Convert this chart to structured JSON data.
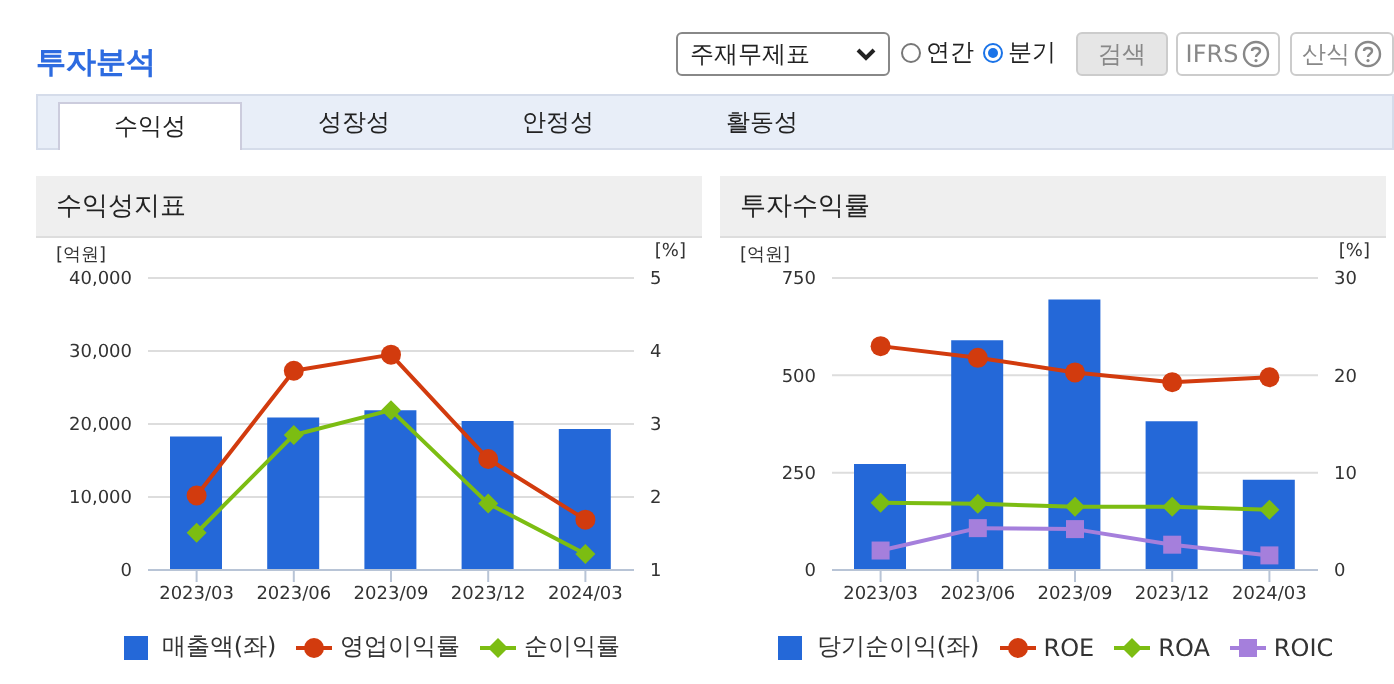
{
  "chart_data": [
    {
      "type": "other",
      "title": "투자분석",
      "annotations": [
        "주재무제표",
        "연간",
        "분기",
        "검색",
        "IFRS",
        "산식",
        "수익성",
        "성장성",
        "안정성",
        "활동성"
      ]
    },
    {
      "type": "bar",
      "title": "수익성지표",
      "ylabel": "[억원]",
      "y2label": "[%]",
      "categories": [
        "2023/03",
        "2023/06",
        "2023/09",
        "2023/12",
        "2024/03"
      ],
      "ylim": [
        0,
        40000
      ],
      "yticks": [
        0,
        {
          "value": 10000,
          "label": "10,000"
        },
        {
          "value": 20000,
          "label": "20,000"
        },
        {
          "value": 30000,
          "label": "30,000"
        },
        {
          "value": 40000,
          "label": "40,000"
        }
      ],
      "y2lim": [
        1,
        5
      ],
      "y2ticks": [
        1,
        2,
        3,
        4,
        5
      ],
      "grid": "y",
      "legend": "bottom",
      "series": [
        {
          "name": "매출액(좌)",
          "type": "bar",
          "color": "#2468d8",
          "values": [
            18300,
            20900,
            21900,
            20400,
            19300
          ]
        },
        {
          "name": "영업이익률",
          "type": "line",
          "axis": "y2",
          "marker": "circle",
          "color": "#d23b0e",
          "values": [
            2.02,
            3.73,
            3.95,
            2.52,
            1.69
          ]
        },
        {
          "name": "순이익률",
          "type": "line",
          "axis": "y2",
          "marker": "diamond",
          "color": "#7cbd12",
          "values": [
            1.51,
            2.85,
            3.19,
            1.91,
            1.22
          ]
        }
      ]
    },
    {
      "type": "bar",
      "title": "투자수익률",
      "ylabel": "[억원]",
      "y2label": "[%]",
      "categories": [
        "2023/03",
        "2023/06",
        "2023/09",
        "2023/12",
        "2024/03"
      ],
      "ylim": [
        0,
        750
      ],
      "yticks": [
        0,
        250,
        500,
        750
      ],
      "y2lim": [
        0,
        30
      ],
      "y2ticks": [
        0,
        10,
        20,
        30
      ],
      "grid": "y",
      "legend": "bottom",
      "series": [
        {
          "name": "당기순이익(좌)",
          "type": "bar",
          "color": "#2468d8",
          "values": [
            272,
            590,
            695,
            382,
            232
          ]
        },
        {
          "name": "ROE",
          "type": "line",
          "axis": "y2",
          "marker": "circle",
          "color": "#d23b0e",
          "values": [
            23.0,
            21.8,
            20.3,
            19.3,
            19.8
          ]
        },
        {
          "name": "ROA",
          "type": "line",
          "axis": "y2",
          "marker": "diamond",
          "color": "#7cbd12",
          "values": [
            6.9,
            6.8,
            6.5,
            6.5,
            6.2
          ]
        },
        {
          "name": "ROIC",
          "type": "line",
          "axis": "y2",
          "marker": "square",
          "color": "#a57fdc",
          "values": [
            2.0,
            4.3,
            4.2,
            2.6,
            1.5
          ]
        }
      ]
    }
  ]
}
